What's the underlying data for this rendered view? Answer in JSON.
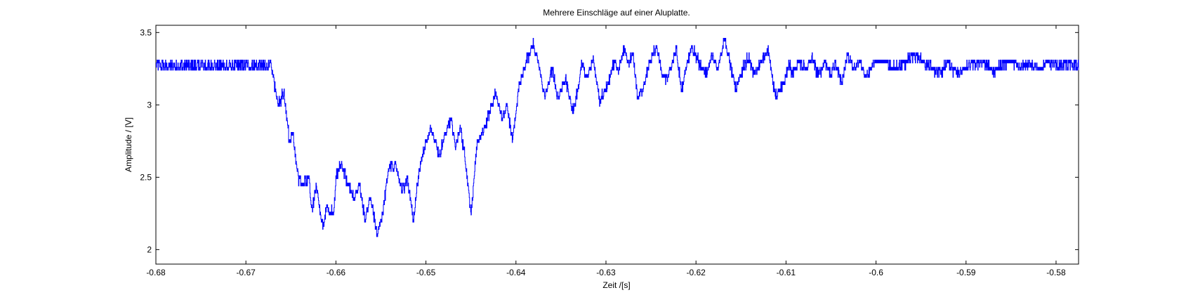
{
  "chart_data": {
    "type": "line",
    "title": "Mehrere Einschläge auf einer Aluplatte.",
    "xlabel": "Zeit /[s]",
    "ylabel": "Amplitude / [V]",
    "xlim": [
      -0.68,
      -0.5775
    ],
    "ylim": [
      1.9,
      3.55
    ],
    "xticks": [
      -0.68,
      -0.67,
      -0.66,
      -0.65,
      -0.64,
      -0.63,
      -0.62,
      -0.61,
      -0.6,
      -0.59,
      -0.58
    ],
    "xtick_labels": [
      "-0.68",
      "-0.67",
      "-0.66",
      "-0.65",
      "-0.64",
      "-0.63",
      "-0.62",
      "-0.61",
      "-0.6",
      "-0.59",
      "-0.58"
    ],
    "yticks": [
      2,
      2.5,
      3,
      3.5
    ],
    "ytick_labels": [
      "2",
      "2.5",
      "3",
      "3.5"
    ],
    "grid": false,
    "legend": "none",
    "series_color": "#0000ff",
    "series": [
      {
        "quantization_step": 0.05,
        "noise_amplitude": 0.025,
        "x": [
          -0.68,
          -0.6672,
          -0.6664,
          -0.6658,
          -0.6652,
          -0.6648,
          -0.6642,
          -0.6636,
          -0.663,
          -0.6627,
          -0.6622,
          -0.6615,
          -0.661,
          -0.6603,
          -0.66,
          -0.6594,
          -0.6587,
          -0.658,
          -0.6574,
          -0.6568,
          -0.6562,
          -0.6554,
          -0.6547,
          -0.6542,
          -0.6534,
          -0.6527,
          -0.6521,
          -0.6514,
          -0.6508,
          -0.65,
          -0.6494,
          -0.6485,
          -0.6478,
          -0.6472,
          -0.6467,
          -0.6462,
          -0.6456,
          -0.645,
          -0.6443,
          -0.6436,
          -0.6428,
          -0.6423,
          -0.6415,
          -0.641,
          -0.6404,
          -0.6397,
          -0.6388,
          -0.6381,
          -0.6374,
          -0.6368,
          -0.636,
          -0.6354,
          -0.6345,
          -0.6337,
          -0.6331,
          -0.6327,
          -0.6321,
          -0.6314,
          -0.6307,
          -0.6298,
          -0.6291,
          -0.6286,
          -0.628,
          -0.6275,
          -0.627,
          -0.6265,
          -0.6258,
          -0.6252,
          -0.6244,
          -0.6238,
          -0.6232,
          -0.6226,
          -0.6222,
          -0.6216,
          -0.621,
          -0.6205,
          -0.6196,
          -0.6188,
          -0.6182,
          -0.6176,
          -0.6168,
          -0.6163,
          -0.6156,
          -0.6148,
          -0.6142,
          -0.6135,
          -0.6128,
          -0.612,
          -0.6112,
          -0.6103,
          -0.6097,
          -0.6093,
          -0.6086,
          -0.6078,
          -0.6071,
          -0.6064,
          -0.6057,
          -0.6051,
          -0.6045,
          -0.6038,
          -0.6032,
          -0.6025,
          -0.6018,
          -0.6012,
          -0.6002,
          -0.5992,
          -0.598,
          -0.5968,
          -0.5958,
          -0.5948,
          -0.5938,
          -0.5928,
          -0.592,
          -0.5912,
          -0.5902,
          -0.589,
          -0.588,
          -0.587,
          -0.586,
          -0.585,
          -0.584,
          -0.583,
          -0.582,
          -0.581,
          -0.58,
          -0.579,
          -0.5775
        ],
        "y": [
          3.27,
          3.27,
          3.0,
          3.1,
          2.75,
          2.8,
          2.5,
          2.45,
          2.5,
          2.25,
          2.45,
          2.15,
          2.3,
          2.25,
          2.5,
          2.6,
          2.45,
          2.35,
          2.45,
          2.2,
          2.35,
          2.1,
          2.3,
          2.55,
          2.6,
          2.4,
          2.5,
          2.2,
          2.55,
          2.75,
          2.85,
          2.65,
          2.82,
          2.9,
          2.7,
          2.85,
          2.6,
          2.25,
          2.75,
          2.82,
          2.98,
          3.08,
          2.9,
          3.0,
          2.75,
          3.12,
          3.32,
          3.42,
          3.25,
          3.05,
          3.25,
          3.05,
          3.18,
          2.95,
          3.12,
          3.3,
          3.18,
          3.32,
          3.02,
          3.15,
          3.3,
          3.22,
          3.4,
          3.28,
          3.35,
          3.05,
          3.12,
          3.3,
          3.4,
          3.22,
          3.18,
          3.3,
          3.38,
          3.1,
          3.28,
          3.4,
          3.28,
          3.22,
          3.35,
          3.25,
          3.45,
          3.3,
          3.12,
          3.25,
          3.33,
          3.2,
          3.3,
          3.38,
          3.05,
          3.15,
          3.3,
          3.2,
          3.3,
          3.25,
          3.32,
          3.2,
          3.3,
          3.22,
          3.28,
          3.15,
          3.35,
          3.25,
          3.3,
          3.2,
          3.3,
          3.3,
          3.25,
          3.28,
          3.35,
          3.3,
          3.25,
          3.22,
          3.3,
          3.22,
          3.25,
          3.28,
          3.3,
          3.22,
          3.28,
          3.3,
          3.25,
          3.28,
          3.25,
          3.3,
          3.27,
          3.28,
          3.27
        ]
      }
    ]
  }
}
